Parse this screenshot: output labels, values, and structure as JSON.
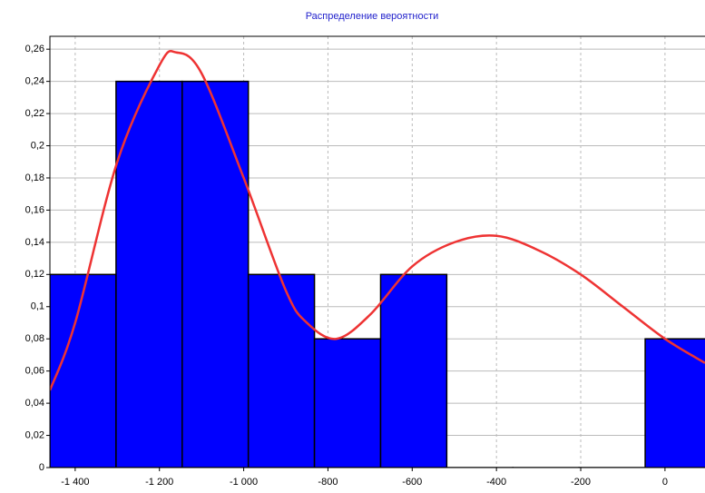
{
  "chart_data": {
    "type": "histogram",
    "title": "Распределение вероятности",
    "bins": [
      -1460,
      -1303,
      -1146,
      -989,
      -832,
      -675,
      -518,
      -361,
      -204,
      -47,
      110
    ],
    "values": [
      0.12,
      0.24,
      0.24,
      0.12,
      0.08,
      0.12,
      0,
      0,
      0,
      0.08
    ],
    "color": "#0000ff",
    "curve": {
      "color": "#ee3333",
      "x": [
        -1460,
        -1400,
        -1300,
        -1200,
        -1160,
        -1100,
        -1000,
        -900,
        -850,
        -780,
        -700,
        -600,
        -500,
        -400,
        -300,
        -200,
        -100,
        0,
        95
      ],
      "y": [
        0.048,
        0.09,
        0.19,
        0.25,
        0.258,
        0.245,
        0.18,
        0.11,
        0.09,
        0.08,
        0.095,
        0.125,
        0.14,
        0.144,
        0.135,
        0.12,
        0.1,
        0.08,
        0.065
      ]
    },
    "xlim": [
      -1460,
      95
    ],
    "ylim": [
      0,
      0.268
    ],
    "xticks": [
      {
        "value": -1400,
        "label": "-1 400"
      },
      {
        "value": -1200,
        "label": "-1 200"
      },
      {
        "value": -1000,
        "label": "-1 000"
      },
      -800,
      -600,
      -400,
      -200,
      0
    ],
    "yticks": [
      0,
      {
        "value": 0.02,
        "label": "0,02"
      },
      {
        "value": 0.04,
        "label": "0,04"
      },
      {
        "value": 0.06,
        "label": "0,06"
      },
      {
        "value": 0.08,
        "label": "0,08"
      },
      {
        "value": 0.1,
        "label": "0,1"
      },
      {
        "value": 0.12,
        "label": "0,12"
      },
      {
        "value": 0.14,
        "label": "0,14"
      },
      {
        "value": 0.16,
        "label": "0,16"
      },
      {
        "value": 0.18,
        "label": "0,18"
      },
      {
        "value": 0.2,
        "label": "0,2"
      },
      {
        "value": 0.22,
        "label": "0,22"
      },
      {
        "value": 0.24,
        "label": "0,24"
      },
      {
        "value": 0.26,
        "label": "0,26"
      }
    ],
    "grid": true
  }
}
